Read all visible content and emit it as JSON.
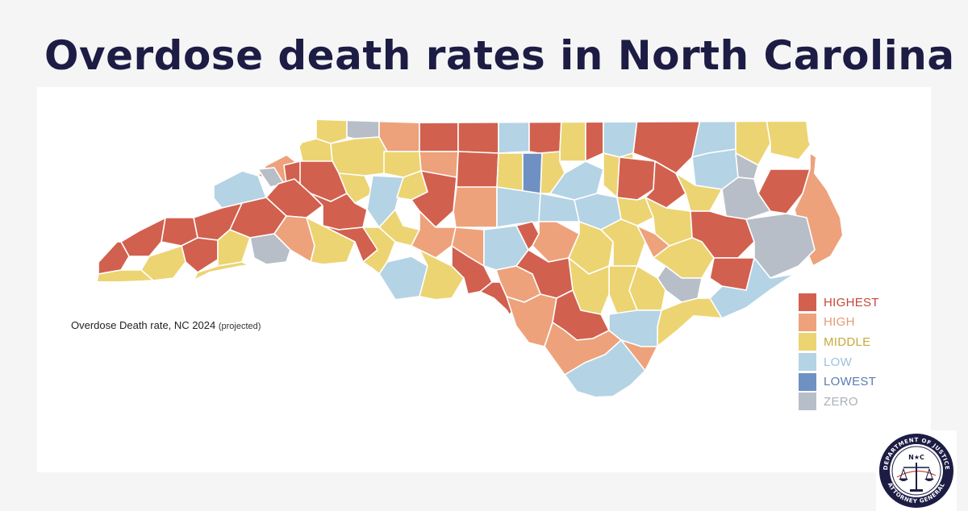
{
  "title": "Overdose death rates in North Carolina",
  "caption": {
    "main": "Overdose Death rate,",
    "year": " NC 2024",
    "note": "(projected)"
  },
  "legend": [
    {
      "label": "HIGHEST",
      "color": "#d2604e",
      "text_color": "#c4473a"
    },
    {
      "label": "HIGH",
      "color": "#eda27b",
      "text_color": "#e59a72"
    },
    {
      "label": "MIDDLE",
      "color": "#ecd472",
      "text_color": "#c9a93a"
    },
    {
      "label": "LOW",
      "color": "#b4d3e5",
      "text_color": "#9cc2dc"
    },
    {
      "label": "LOWEST",
      "color": "#6f90c3",
      "text_color": "#5a7cb3"
    },
    {
      "label": "ZERO",
      "color": "#b8bec8",
      "text_color": "#a9afba"
    }
  ],
  "seal": {
    "org_top": "DEPARTMENT OF JUSTICE",
    "org_bottom": "ATTORNEY GENERAL",
    "center": "N★C"
  }
}
